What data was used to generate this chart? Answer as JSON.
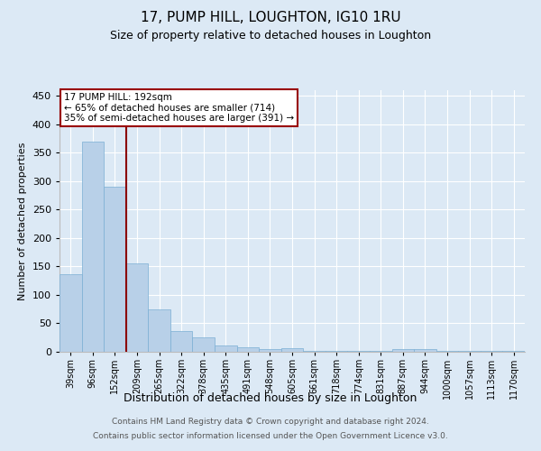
{
  "title": "17, PUMP HILL, LOUGHTON, IG10 1RU",
  "subtitle": "Size of property relative to detached houses in Loughton",
  "xlabel": "Distribution of detached houses by size in Loughton",
  "ylabel": "Number of detached properties",
  "categories": [
    "39sqm",
    "96sqm",
    "152sqm",
    "209sqm",
    "265sqm",
    "322sqm",
    "378sqm",
    "435sqm",
    "491sqm",
    "548sqm",
    "605sqm",
    "661sqm",
    "718sqm",
    "774sqm",
    "831sqm",
    "887sqm",
    "944sqm",
    "1000sqm",
    "1057sqm",
    "1113sqm",
    "1170sqm"
  ],
  "values": [
    136,
    370,
    290,
    155,
    74,
    36,
    25,
    11,
    8,
    5,
    7,
    2,
    2,
    1,
    2,
    4,
    4,
    2,
    2,
    2,
    2
  ],
  "bar_color": "#b8d0e8",
  "bar_edgecolor": "#7aafd4",
  "background_color": "#dce9f5",
  "grid_color": "#ffffff",
  "vline_color": "#8b0000",
  "vline_index": 3,
  "annotation_text_line1": "17 PUMP HILL: 192sqm",
  "annotation_text_line2": "← 65% of detached houses are smaller (714)",
  "annotation_text_line3": "35% of semi-detached houses are larger (391) →",
  "annotation_box_facecolor": "#ffffff",
  "annotation_box_edgecolor": "#990000",
  "ylim": [
    0,
    460
  ],
  "yticks": [
    0,
    50,
    100,
    150,
    200,
    250,
    300,
    350,
    400,
    450
  ],
  "footer1": "Contains HM Land Registry data © Crown copyright and database right 2024.",
  "footer2": "Contains public sector information licensed under the Open Government Licence v3.0."
}
